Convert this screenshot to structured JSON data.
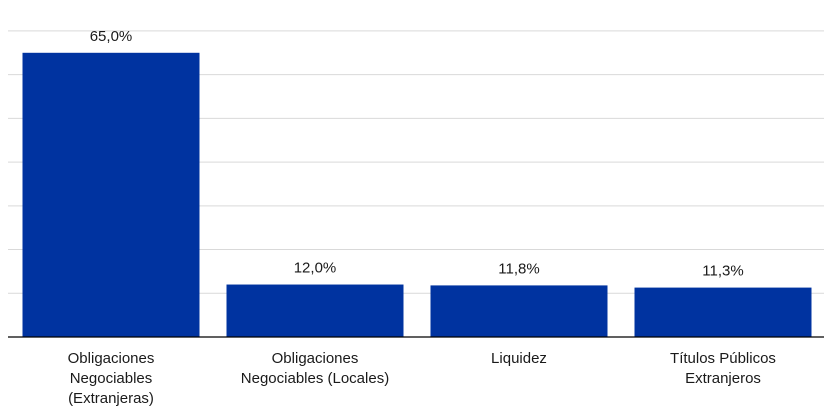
{
  "chart_data": {
    "type": "bar",
    "categories": [
      [
        "Obligaciones",
        "Negociables",
        "(Extranjeras)"
      ],
      [
        "Obligaciones",
        "Negociables (Locales)"
      ],
      [
        "Liquidez"
      ],
      [
        "Títulos Públicos",
        "Extranjeros"
      ]
    ],
    "values": [
      65.0,
      12.0,
      11.8,
      11.3
    ],
    "value_labels": [
      "65,0%",
      "12,0%",
      "11,8%",
      "11,3%"
    ],
    "ylim": [
      0,
      72.5
    ],
    "grid_step": 10,
    "grid": true,
    "bar_color": "#0033a0",
    "title": "",
    "xlabel": "",
    "ylabel": ""
  }
}
